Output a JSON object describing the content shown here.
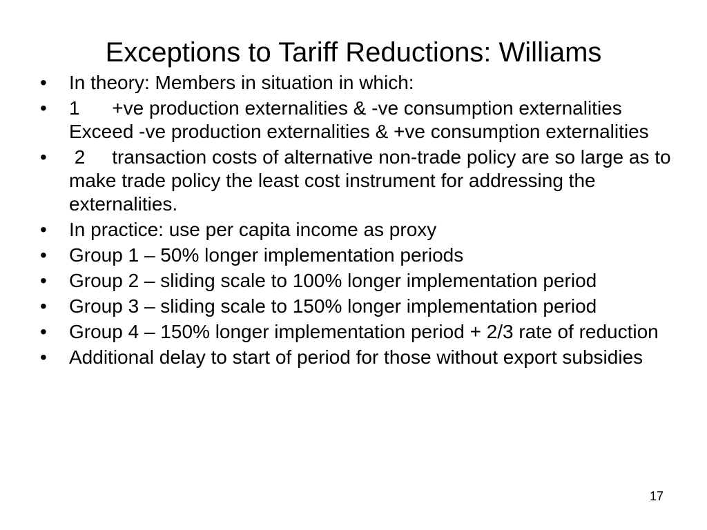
{
  "slide": {
    "title": "Exceptions to Tariff Reductions: Williams",
    "bullet_glyph": "•",
    "bullets": [
      "In theory: Members in situation in which:",
      "1\t+ve production externalities & -ve consumption externalities Exceed -ve production externalities & +ve consumption externalities",
      " 2\ttransaction costs of alternative non-trade policy are so large as to make trade policy the least cost instrument for addressing the externalities.",
      "In practice: use per capita income as proxy",
      "Group 1 – 50% longer implementation periods",
      "Group 2 – sliding scale to 100% longer implementation period",
      "Group 3 – sliding scale to 150% longer implementation period",
      "Group 4 – 150% longer implementation period + 2/3 rate of reduction",
      "Additional delay to start of period for those without export subsidies"
    ],
    "page_number": "17"
  }
}
